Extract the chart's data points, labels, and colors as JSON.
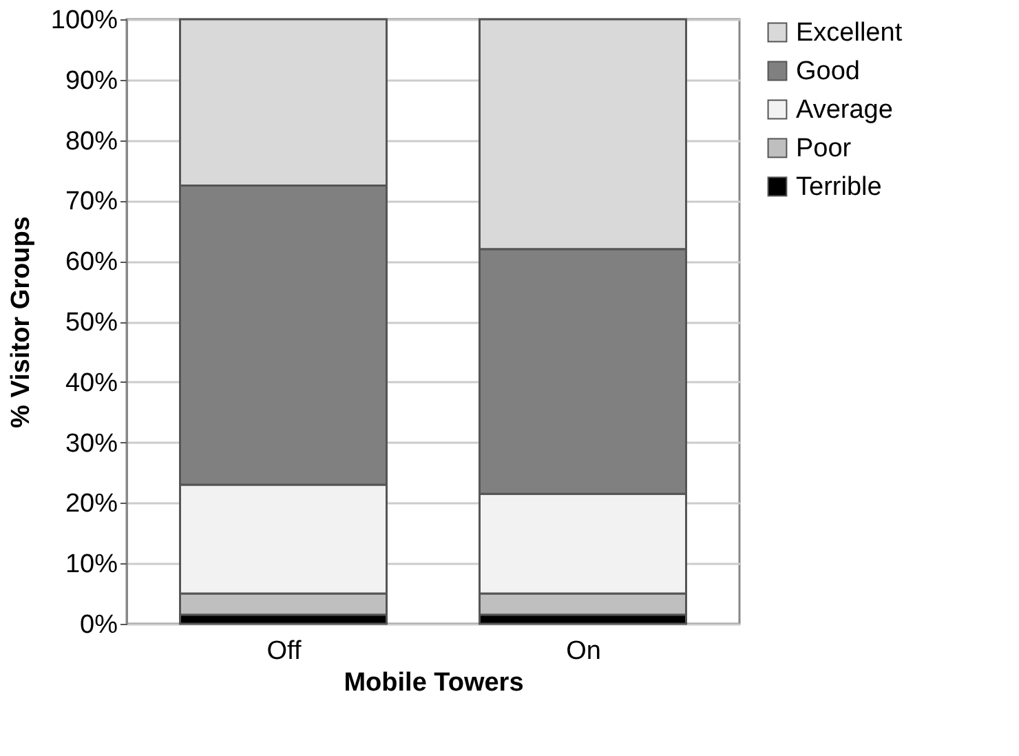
{
  "chart_data": {
    "type": "bar",
    "stacked": true,
    "xlabel": "Mobile Towers",
    "ylabel": "% Visitor Groups",
    "categories": [
      "Off",
      "On"
    ],
    "series": [
      {
        "name": "Terrible",
        "color": "#000000",
        "values": [
          1.5,
          1.5
        ]
      },
      {
        "name": "Poor",
        "color": "#bfbfbf",
        "values": [
          3.5,
          3.5
        ]
      },
      {
        "name": "Average",
        "color": "#f2f2f2",
        "values": [
          18,
          16.5
        ]
      },
      {
        "name": "Good",
        "color": "#808080",
        "values": [
          49.5,
          40.5
        ]
      },
      {
        "name": "Excellent",
        "color": "#d9d9d9",
        "values": [
          27.5,
          38
        ]
      }
    ],
    "ylim": [
      0,
      100
    ],
    "yticks": [
      {
        "value": 0,
        "label": "0%"
      },
      {
        "value": 10,
        "label": "10%"
      },
      {
        "value": 20,
        "label": "20%"
      },
      {
        "value": 30,
        "label": "30%"
      },
      {
        "value": 40,
        "label": "40%"
      },
      {
        "value": 50,
        "label": "50%"
      },
      {
        "value": 60,
        "label": "60%"
      },
      {
        "value": 70,
        "label": "70%"
      },
      {
        "value": 80,
        "label": "80%"
      },
      {
        "value": 90,
        "label": "90%"
      },
      {
        "value": 100,
        "label": "100%"
      }
    ],
    "grid": "y",
    "legend": "right"
  }
}
